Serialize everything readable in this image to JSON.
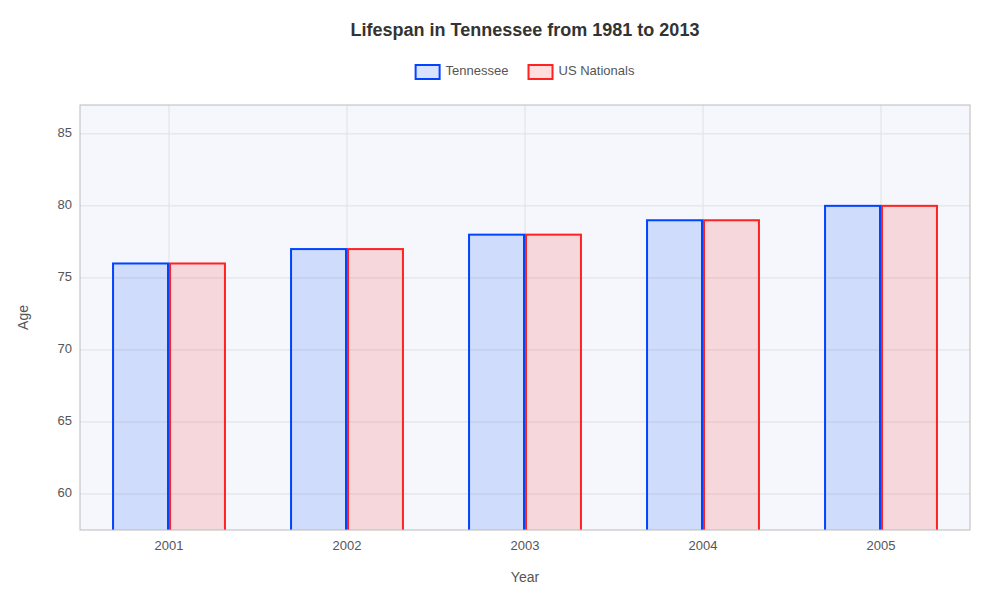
{
  "chart_data": {
    "type": "bar",
    "title": "Lifespan in Tennessee from 1981 to 2013",
    "x_label": "Year",
    "y_label": "Age",
    "categories": [
      "2001",
      "2002",
      "2003",
      "2004",
      "2005"
    ],
    "series": [
      {
        "name": "Tennessee",
        "color": "#0044ff",
        "values": [
          76,
          77,
          78,
          79,
          80
        ]
      },
      {
        "name": "US Nationals",
        "color": "#ff2222",
        "values": [
          76,
          77,
          78,
          79,
          80
        ]
      }
    ],
    "ylim": [
      57.5,
      87
    ],
    "yticks": [
      60,
      65,
      70,
      75,
      80,
      85
    ],
    "grid": true,
    "legend": "top"
  }
}
